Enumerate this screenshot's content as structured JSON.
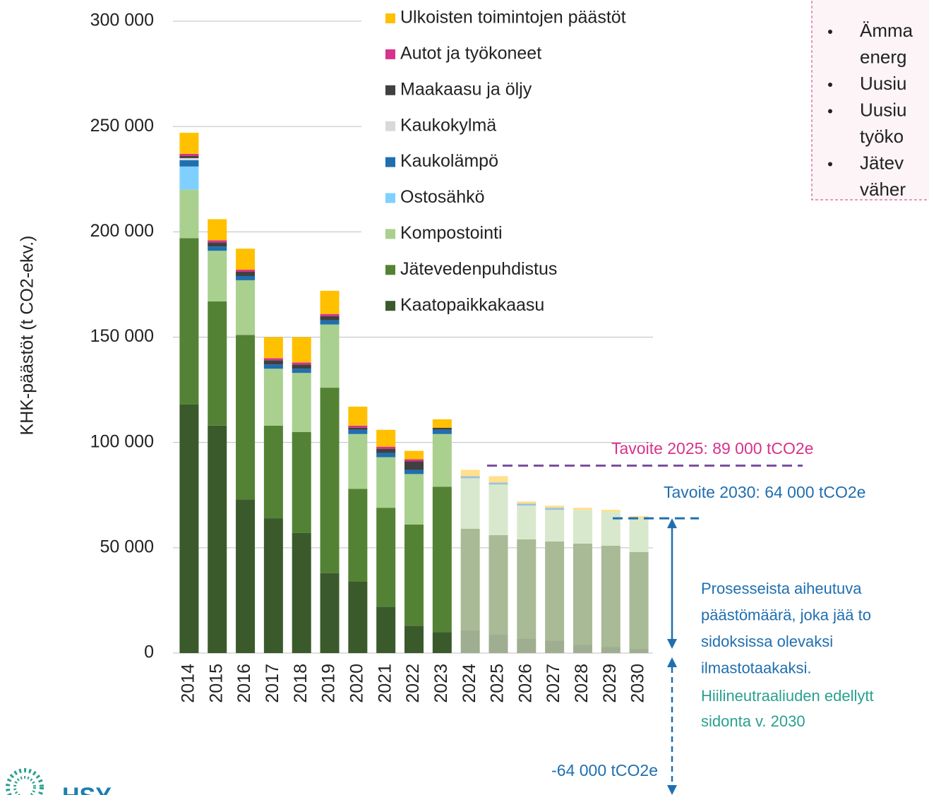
{
  "chart_data": {
    "type": "bar",
    "stacked": true,
    "y_label": "KHK-päästöt (t CO2-ekv.)",
    "categories": [
      "2014",
      "2015",
      "2016",
      "2017",
      "2018",
      "2019",
      "2020",
      "2021",
      "2022",
      "2023",
      "2024",
      "2025",
      "2026",
      "2027",
      "2028",
      "2029",
      "2030"
    ],
    "forecast_from": "2024",
    "ylim": [
      0,
      300000
    ],
    "yticks": [
      0,
      {
        "value": 50000,
        "label": "50 000"
      },
      {
        "value": 100000,
        "label": "100 000"
      },
      {
        "value": 150000,
        "label": "150 000"
      },
      {
        "value": 200000,
        "label": "200 000"
      },
      {
        "value": 250000,
        "label": "250 000"
      },
      {
        "value": 300000,
        "label": "300 000"
      }
    ],
    "grid": true,
    "series": [
      {
        "name": "Kaatopaikkakaasu",
        "color": "#3b5a2b",
        "forecast_color": "#9fae90",
        "values": [
          118000,
          108000,
          73000,
          64000,
          57000,
          38000,
          34000,
          22000,
          13000,
          10000,
          11000,
          9000,
          7000,
          6000,
          4000,
          3000,
          2000
        ]
      },
      {
        "name": "Jätevedenpuhdistus",
        "color": "#548235",
        "forecast_color": "#a8ba96",
        "values": [
          79000,
          59000,
          78000,
          44000,
          48000,
          88000,
          44000,
          47000,
          48000,
          69000,
          48000,
          47000,
          47000,
          47000,
          48000,
          48000,
          46000
        ]
      },
      {
        "name": "Kompostointi",
        "color": "#a9d08e",
        "forecast_color": "#d8e8cc",
        "values": [
          23000,
          24000,
          26000,
          27000,
          28000,
          30000,
          26000,
          24000,
          24000,
          25000,
          24000,
          24000,
          16000,
          15000,
          16000,
          16000,
          16000
        ]
      },
      {
        "name": "Ostosähkö",
        "color": "#7fd0ff",
        "forecast_color": "#cdeeff",
        "values": [
          11000,
          0,
          0,
          0,
          0,
          0,
          0,
          0,
          0,
          0,
          0,
          0,
          0,
          0,
          0,
          0,
          0
        ]
      },
      {
        "name": "Kaukolämpö",
        "color": "#1f6fb0",
        "forecast_color": "#9fc0dc",
        "values": [
          3000,
          2000,
          2000,
          2000,
          2000,
          2000,
          2000,
          2000,
          2000,
          2000,
          1000,
          1000,
          1000,
          1000,
          0,
          0,
          0
        ]
      },
      {
        "name": "Kaukokylmä",
        "color": "#d9d9d9",
        "forecast_color": "#eeeeee",
        "values": [
          1000,
          0,
          0,
          0,
          0,
          0,
          0,
          0,
          0,
          0,
          0,
          0,
          0,
          0,
          0,
          0,
          0
        ]
      },
      {
        "name": "Maakaasu ja öljy",
        "color": "#404040",
        "forecast_color": "#a0a0a0",
        "values": [
          1000,
          2000,
          2000,
          2000,
          2000,
          2000,
          1000,
          2000,
          4000,
          1000,
          0,
          0,
          0,
          0,
          0,
          0,
          0
        ]
      },
      {
        "name": "Autot ja työkoneet",
        "color": "#d6338a",
        "forecast_color": "#eea0c8",
        "values": [
          1000,
          1000,
          1000,
          1000,
          1000,
          1000,
          1000,
          1000,
          1000,
          0,
          0,
          0,
          0,
          0,
          0,
          0,
          0
        ]
      },
      {
        "name": "Ulkoisten toimintojen päästöt",
        "color": "#ffc000",
        "forecast_color": "#ffe08c",
        "values": [
          10000,
          10000,
          10000,
          10000,
          12000,
          11000,
          9000,
          8000,
          4000,
          4000,
          3000,
          3000,
          1000,
          1000,
          1000,
          1000,
          1000
        ]
      }
    ],
    "targets": [
      {
        "label": "Tavoite 2025: 89 000 tCO2e",
        "value": 89000,
        "color": "#7b4fa0",
        "label_color": "#d6338a"
      },
      {
        "label": "Tavoite 2030: 64 000 tCO2e",
        "value": 64000,
        "color": "#1f6fb0",
        "label_color": "#1f6fb0"
      }
    ],
    "annotations": {
      "process": [
        "Prosesseista aiheutuva",
        "päästömäärä, joka jää to",
        "sidoksissa olevaksi",
        "ilmastotaakaksi."
      ],
      "sink": [
        "Hiilineutraaliuden edellytt",
        "sidonta v. 2030"
      ],
      "sink_value": "-64 000 tCO2e"
    }
  },
  "note_box": {
    "lines": [
      "Ämma",
      "energ",
      "Uusiu",
      "Uusiu",
      "työko",
      "Jätev",
      "väher"
    ]
  },
  "logo": "HSY"
}
